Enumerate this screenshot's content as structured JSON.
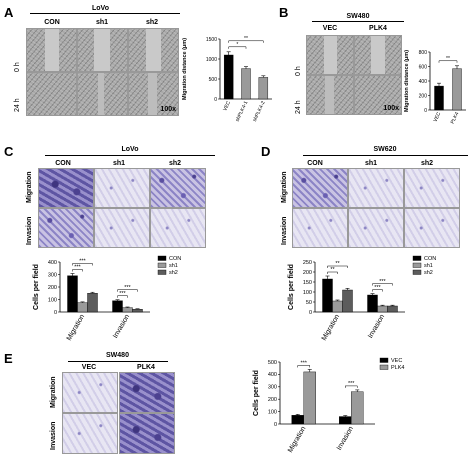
{
  "panels": {
    "A": {
      "label": "A",
      "cell_line": "LoVo",
      "columns": [
        "CON",
        "sh1",
        "sh2"
      ],
      "rows": [
        "0 h",
        "24 h"
      ],
      "magnification": "100x"
    },
    "B": {
      "label": "B",
      "cell_line": "SW480",
      "columns": [
        "VEC",
        "PLK4"
      ],
      "rows": [
        "0 h",
        "24 h"
      ],
      "magnification": "100x"
    },
    "C": {
      "label": "C",
      "cell_line": "LoVo",
      "columns": [
        "CON",
        "sh1",
        "sh2"
      ],
      "rows": [
        "Migration",
        "Invasion"
      ]
    },
    "D": {
      "label": "D",
      "cell_line": "SW620",
      "columns": [
        "CON",
        "sh1",
        "sh2"
      ],
      "rows": [
        "Migration",
        "Invasion"
      ]
    },
    "E": {
      "label": "E",
      "cell_line": "SW480",
      "columns": [
        "VEC",
        "PLK4"
      ],
      "rows": [
        "Migration",
        "Invasion"
      ]
    }
  },
  "chart_data": [
    {
      "id": "A-chart",
      "type": "bar",
      "ylabel": "Migration distance (μm)",
      "categories": [
        "VEC",
        "shPLK4-1",
        "shPLK4-2"
      ],
      "values": [
        1100,
        760,
        540
      ],
      "errors": [
        80,
        50,
        40
      ],
      "colors": [
        "#000000",
        "#9a9a9a",
        "#9a9a9a"
      ],
      "yticks": [
        0,
        500,
        1000,
        1500
      ],
      "ylim": [
        0,
        1500
      ],
      "significance": [
        {
          "from": 0,
          "to": 1,
          "label": "*"
        },
        {
          "from": 0,
          "to": 2,
          "label": "**"
        }
      ]
    },
    {
      "id": "B-chart",
      "type": "bar",
      "ylabel": "Migration distance (μm)",
      "categories": [
        "VEC",
        "PLK4"
      ],
      "values": [
        330,
        570
      ],
      "errors": [
        40,
        40
      ],
      "colors": [
        "#000000",
        "#9a9a9a"
      ],
      "yticks": [
        0,
        200,
        400,
        600,
        800
      ],
      "ylim": [
        0,
        800
      ],
      "significance": [
        {
          "from": 0,
          "to": 1,
          "label": "**"
        }
      ]
    },
    {
      "id": "C-chart",
      "type": "bar",
      "ylabel": "Cells per field",
      "groups": [
        "Migration",
        "Invasion"
      ],
      "series": [
        {
          "name": "CON",
          "values": [
            290,
            90
          ],
          "errors": [
            18,
            8
          ],
          "color": "#000000"
        },
        {
          "name": "sh1",
          "values": [
            75,
            35
          ],
          "errors": [
            6,
            5
          ],
          "color": "#9a9a9a"
        },
        {
          "name": "sh2",
          "values": [
            150,
            22
          ],
          "errors": [
            8,
            4
          ],
          "color": "#5c5c5c"
        }
      ],
      "yticks": [
        0,
        100,
        200,
        300,
        400
      ],
      "ylim": [
        0,
        400
      ],
      "legend": "top-right",
      "significance": [
        {
          "group": 0,
          "from": 0,
          "to": 1,
          "label": "***"
        },
        {
          "group": 0,
          "from": 0,
          "to": 2,
          "label": "***"
        },
        {
          "group": 1,
          "from": 0,
          "to": 1,
          "label": "***"
        },
        {
          "group": 1,
          "from": 0,
          "to": 2,
          "label": "***"
        }
      ]
    },
    {
      "id": "D-chart",
      "type": "bar",
      "ylabel": "Cells per field",
      "groups": [
        "Migration",
        "Invasion"
      ],
      "series": [
        {
          "name": "CON",
          "values": [
            165,
            85
          ],
          "errors": [
            15,
            7
          ],
          "color": "#000000"
        },
        {
          "name": "sh1",
          "values": [
            55,
            30
          ],
          "errors": [
            5,
            4
          ],
          "color": "#9a9a9a"
        },
        {
          "name": "sh2",
          "values": [
            110,
            30
          ],
          "errors": [
            8,
            4
          ],
          "color": "#5c5c5c"
        }
      ],
      "yticks": [
        0,
        50,
        100,
        150,
        200,
        250
      ],
      "ylim": [
        0,
        250
      ],
      "legend": "top-right",
      "significance": [
        {
          "group": 0,
          "from": 0,
          "to": 1,
          "label": "**"
        },
        {
          "group": 0,
          "from": 0,
          "to": 2,
          "label": "**"
        },
        {
          "group": 1,
          "from": 0,
          "to": 1,
          "label": "***"
        },
        {
          "group": 1,
          "from": 0,
          "to": 2,
          "label": "***"
        }
      ]
    },
    {
      "id": "E-chart",
      "type": "bar",
      "ylabel": "Cells per field",
      "groups": [
        "Migration",
        "Invasion"
      ],
      "series": [
        {
          "name": "VEC",
          "values": [
            70,
            60
          ],
          "errors": [
            8,
            8
          ],
          "color": "#000000"
        },
        {
          "name": "PLK4",
          "values": [
            420,
            260
          ],
          "errors": [
            20,
            15
          ],
          "color": "#9a9a9a"
        }
      ],
      "yticks": [
        0,
        100,
        200,
        300,
        400,
        500
      ],
      "ylim": [
        0,
        500
      ],
      "legend": "top-right",
      "significance": [
        {
          "group": 0,
          "from": 0,
          "to": 1,
          "label": "***"
        },
        {
          "group": 1,
          "from": 0,
          "to": 1,
          "label": "***"
        }
      ]
    }
  ]
}
